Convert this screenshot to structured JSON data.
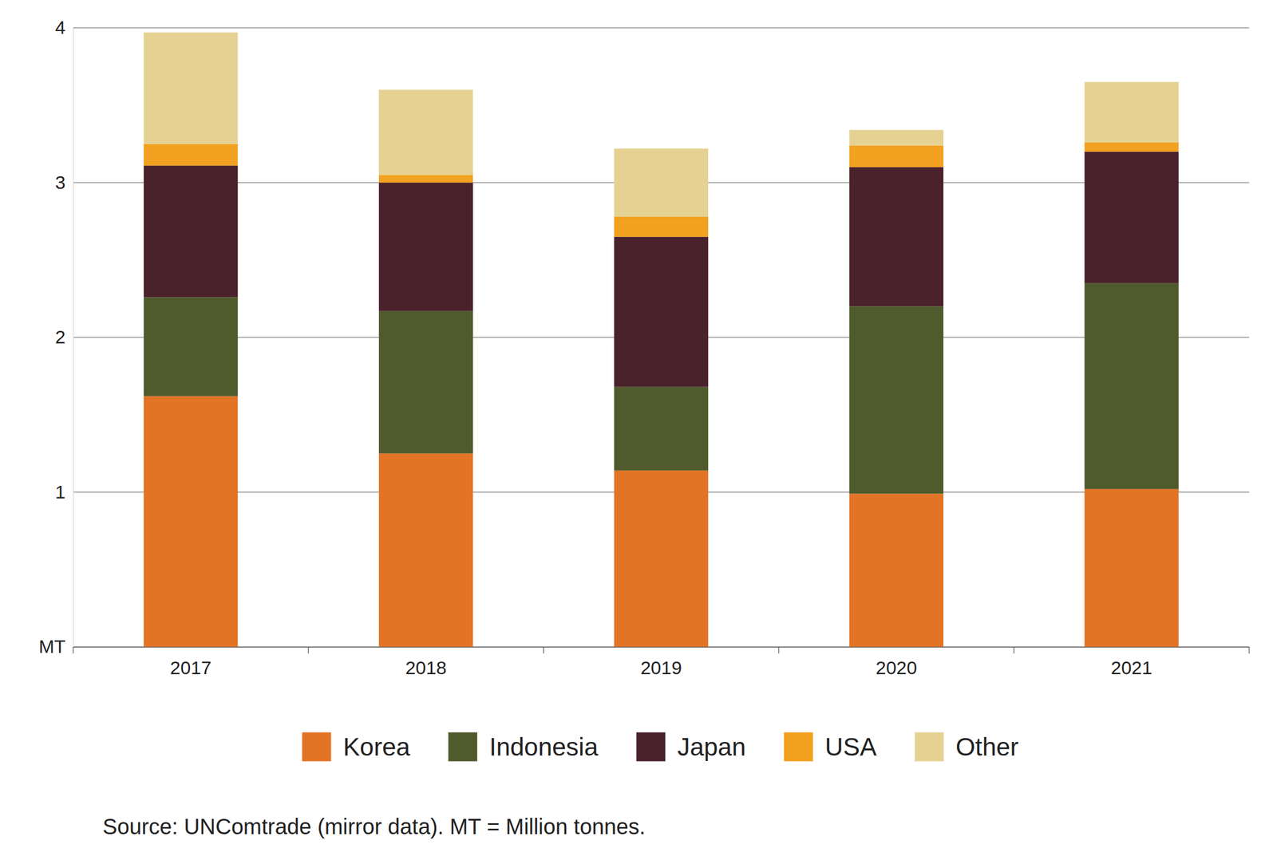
{
  "chart_data": {
    "type": "bar",
    "stacked": true,
    "grid": true,
    "legend": "bottom",
    "categories": [
      "2017",
      "2018",
      "2019",
      "2020",
      "2021"
    ],
    "series": [
      {
        "name": "Korea",
        "color": "#e37426",
        "values": [
          1.62,
          1.25,
          1.14,
          0.99,
          1.02
        ]
      },
      {
        "name": "Indonesia",
        "color": "#4f5b2c",
        "values": [
          0.64,
          0.92,
          0.54,
          1.21,
          1.33
        ]
      },
      {
        "name": "Japan",
        "color": "#4a222b",
        "values": [
          0.85,
          0.83,
          0.97,
          0.9,
          0.85
        ]
      },
      {
        "name": "USA",
        "color": "#f2a120",
        "values": [
          0.14,
          0.05,
          0.13,
          0.14,
          0.06
        ]
      },
      {
        "name": "Other",
        "color": "#e5d293",
        "values": [
          0.72,
          0.55,
          0.44,
          0.1,
          0.39
        ]
      }
    ],
    "ylim": [
      0,
      4
    ],
    "yticks": [
      {
        "value": 0,
        "label": "MT"
      },
      1,
      2,
      3,
      4
    ],
    "source": "Source: UNComtrade (mirror data). MT = Million tonnes."
  }
}
